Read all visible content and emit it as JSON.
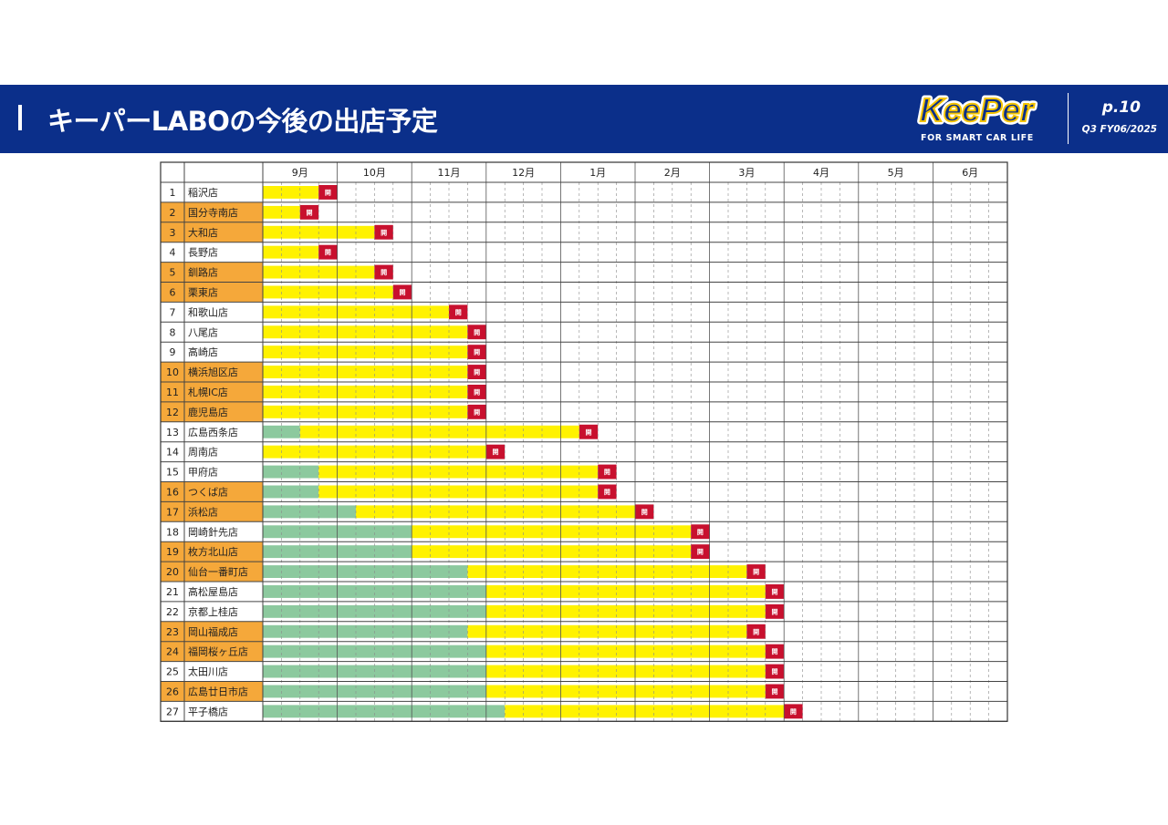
{
  "header": {
    "title": "キーパーLABOの今後の出店予定",
    "logo_text": "KeePer",
    "logo_tagline": "FOR SMART CAR LIFE",
    "page": "p.10",
    "period": "Q3 FY06/2025"
  },
  "colors": {
    "banner": "#0b2f8a",
    "highlight_row": "#f5a83a",
    "phase_pre": "#8cc99e",
    "phase_construction": "#fff200",
    "open_marker": "#c8102e"
  },
  "chart_data": {
    "type": "table",
    "months": [
      "9月",
      "10月",
      "11月",
      "12月",
      "1月",
      "2月",
      "3月",
      "4月",
      "5月",
      "6月"
    ],
    "weeks_per_month": 4,
    "open_marker_label": "開",
    "rows": [
      {
        "no": "1",
        "name": "稲沢店",
        "highlight": false,
        "green_end": 0,
        "open_at": 3
      },
      {
        "no": "2",
        "name": "国分寺南店",
        "highlight": true,
        "green_end": 0,
        "open_at": 2
      },
      {
        "no": "3",
        "name": "大和店",
        "highlight": true,
        "green_end": 0,
        "open_at": 6
      },
      {
        "no": "4",
        "name": "長野店",
        "highlight": false,
        "green_end": 0,
        "open_at": 3
      },
      {
        "no": "5",
        "name": "釧路店",
        "highlight": true,
        "green_end": 0,
        "open_at": 6
      },
      {
        "no": "6",
        "name": "栗東店",
        "highlight": true,
        "green_end": 0,
        "open_at": 7
      },
      {
        "no": "7",
        "name": "和歌山店",
        "highlight": false,
        "green_end": 0,
        "open_at": 10
      },
      {
        "no": "8",
        "name": "八尾店",
        "highlight": false,
        "green_end": 0,
        "open_at": 11
      },
      {
        "no": "9",
        "name": "高崎店",
        "highlight": false,
        "green_end": 0,
        "open_at": 11
      },
      {
        "no": "10",
        "name": "横浜旭区店",
        "highlight": true,
        "green_end": 0,
        "open_at": 11
      },
      {
        "no": "11",
        "name": "札幌IC店",
        "highlight": true,
        "green_end": 0,
        "open_at": 11
      },
      {
        "no": "12",
        "name": "鹿児島店",
        "highlight": true,
        "green_end": 0,
        "open_at": 11
      },
      {
        "no": "13",
        "name": "広島西条店",
        "highlight": false,
        "green_end": 2,
        "open_at": 17
      },
      {
        "no": "14",
        "name": "周南店",
        "highlight": false,
        "green_end": 0,
        "open_at": 12
      },
      {
        "no": "15",
        "name": "甲府店",
        "highlight": false,
        "green_end": 3,
        "open_at": 18
      },
      {
        "no": "16",
        "name": "つくば店",
        "highlight": true,
        "green_end": 3,
        "open_at": 18
      },
      {
        "no": "17",
        "name": "浜松店",
        "highlight": true,
        "green_end": 5,
        "open_at": 20
      },
      {
        "no": "18",
        "name": "岡崎針先店",
        "highlight": false,
        "green_end": 8,
        "open_at": 23
      },
      {
        "no": "19",
        "name": "枚方北山店",
        "highlight": true,
        "green_end": 8,
        "open_at": 23
      },
      {
        "no": "20",
        "name": "仙台一番町店",
        "highlight": true,
        "green_end": 11,
        "open_at": 26
      },
      {
        "no": "21",
        "name": "高松屋島店",
        "highlight": false,
        "green_end": 12,
        "open_at": 27
      },
      {
        "no": "22",
        "name": "京都上桂店",
        "highlight": false,
        "green_end": 12,
        "open_at": 27
      },
      {
        "no": "23",
        "name": "岡山福成店",
        "highlight": true,
        "green_end": 11,
        "open_at": 26
      },
      {
        "no": "24",
        "name": "福岡桜ヶ丘店",
        "highlight": true,
        "green_end": 12,
        "open_at": 27
      },
      {
        "no": "25",
        "name": "太田川店",
        "highlight": false,
        "green_end": 12,
        "open_at": 27
      },
      {
        "no": "26",
        "name": "広島廿日市店",
        "highlight": true,
        "green_end": 12,
        "open_at": 27
      },
      {
        "no": "27",
        "name": "平子橋店",
        "highlight": false,
        "green_end": 13,
        "open_at": 28
      }
    ]
  }
}
